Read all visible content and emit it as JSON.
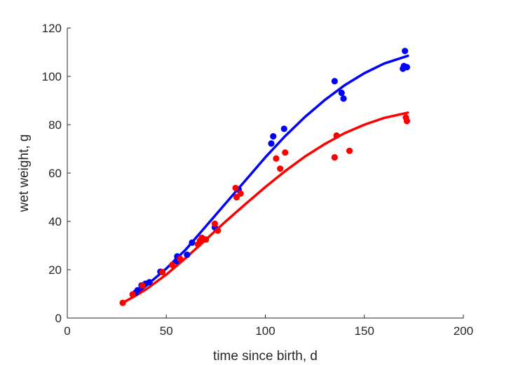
{
  "chart_data": {
    "type": "scatter",
    "title": "",
    "xlabel": "time since birth, d",
    "ylabel": "wet weight, g",
    "xlim": [
      0,
      200
    ],
    "ylim": [
      0,
      120
    ],
    "xticks": [
      0,
      50,
      100,
      150,
      200
    ],
    "yticks": [
      0,
      20,
      40,
      60,
      80,
      100,
      120
    ],
    "grid": false,
    "legend": "none",
    "series": [
      {
        "color": "#0000ff",
        "points": [
          [
            34.5,
            10.5
          ],
          [
            35.5,
            11.5
          ],
          [
            37.5,
            13.5
          ],
          [
            39.5,
            14.2
          ],
          [
            41.5,
            14.8
          ],
          [
            47,
            19.2
          ],
          [
            55,
            23.5
          ],
          [
            55.5,
            25.5
          ],
          [
            60.5,
            26.2
          ],
          [
            63,
            31.2
          ],
          [
            74.5,
            37.5
          ],
          [
            86.5,
            53.2
          ],
          [
            103,
            72.2
          ],
          [
            104,
            75.2
          ],
          [
            109.5,
            78.3
          ],
          [
            135,
            98.0
          ],
          [
            138.5,
            93.2
          ],
          [
            139.5,
            90.8
          ],
          [
            170.5,
            110.5
          ],
          [
            169.5,
            103.2
          ],
          [
            170,
            104.3
          ],
          [
            171.5,
            103.8
          ]
        ],
        "fit": [
          [
            34,
            9.5
          ],
          [
            40,
            13.5
          ],
          [
            50,
            20.5
          ],
          [
            60,
            28.5
          ],
          [
            70,
            38
          ],
          [
            80,
            47.5
          ],
          [
            90,
            57
          ],
          [
            100,
            66.5
          ],
          [
            110,
            75.3
          ],
          [
            120,
            83.2
          ],
          [
            130,
            90.2
          ],
          [
            140,
            96.3
          ],
          [
            150,
            101.3
          ],
          [
            160,
            105.3
          ],
          [
            172,
            108.5
          ]
        ]
      },
      {
        "color": "#ff0000",
        "points": [
          [
            28,
            6.3
          ],
          [
            33,
            9.8
          ],
          [
            38,
            13.5
          ],
          [
            48,
            19.0
          ],
          [
            53,
            22.0
          ],
          [
            57,
            24.5
          ],
          [
            66,
            30.5
          ],
          [
            67,
            32.0
          ],
          [
            68,
            33.2
          ],
          [
            70,
            32.5
          ],
          [
            74.5,
            39.0
          ],
          [
            76,
            36.2
          ],
          [
            85,
            53.8
          ],
          [
            85.5,
            50.0
          ],
          [
            87.5,
            51.5
          ],
          [
            105.5,
            66.0
          ],
          [
            107.5,
            61.8
          ],
          [
            110,
            68.5
          ],
          [
            135,
            66.5
          ],
          [
            136,
            75.5
          ],
          [
            142.5,
            69.2
          ],
          [
            171,
            83.0
          ],
          [
            171.5,
            81.5
          ]
        ],
        "fit": [
          [
            28,
            6.3
          ],
          [
            35,
            9.5
          ],
          [
            40,
            12.0
          ],
          [
            50,
            18.0
          ],
          [
            60,
            25.0
          ],
          [
            70,
            32.5
          ],
          [
            80,
            40.0
          ],
          [
            90,
            47.2
          ],
          [
            100,
            54.2
          ],
          [
            110,
            60.8
          ],
          [
            120,
            66.8
          ],
          [
            130,
            72.0
          ],
          [
            140,
            76.5
          ],
          [
            150,
            80.0
          ],
          [
            160,
            82.8
          ],
          [
            172,
            85.0
          ]
        ]
      }
    ]
  }
}
